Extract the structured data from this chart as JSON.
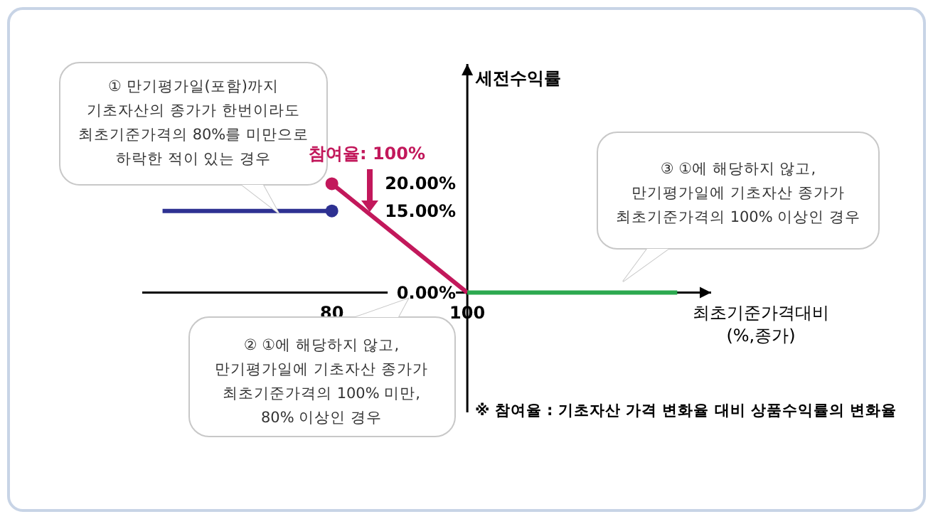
{
  "chart_data": {
    "type": "line",
    "ylabel": "세전수익률",
    "xlabel": "최초기준가격대비\n(%,종가)",
    "xlim": [
      52,
      136
    ],
    "ylim": [
      -22,
      42
    ],
    "xticks": [
      80,
      100
    ],
    "yticks": [
      {
        "value": 0,
        "label": "0.00%"
      },
      {
        "value": 15,
        "label": "15.00%"
      },
      {
        "value": 20,
        "label": "20.00%"
      }
    ],
    "grid": false,
    "series": [
      {
        "color": "#2e3192",
        "x": [
          55,
          80
        ],
        "values": [
          15,
          15
        ]
      },
      {
        "color": "#c2185b",
        "x": [
          80,
          100
        ],
        "values": [
          20,
          0
        ]
      },
      {
        "color": "#2ca94f",
        "x": [
          100,
          131
        ],
        "values": [
          0,
          0
        ]
      },
      {
        "type": "scatter",
        "marker": "circle",
        "color": "#c2185b",
        "x": [
          80
        ],
        "values": [
          20
        ]
      },
      {
        "type": "scatter",
        "marker": "circle",
        "color": "#2e3192",
        "x": [
          80
        ],
        "values": [
          15
        ]
      }
    ],
    "annotations": [
      "① 만기평가일(포함)까지\n기초자산의 종가가 한번이라도\n최초기준가격의 80%를 미만으로\n하락한 적이 있는 경우",
      "② ①에 해당하지 않고,\n만기평가일에 기초자산 종가가\n최초기준가격의 100% 미만,\n80% 이상인 경우",
      "③ ①에 해당하지 않고,\n만기평가일에 기초자산 종가가\n최초기준가격의 100% 이상인 경우",
      "참여율: 100%",
      "※ 참여율 : 기초자산 가격 변화율 대비 상품수익률의 변화율"
    ]
  }
}
